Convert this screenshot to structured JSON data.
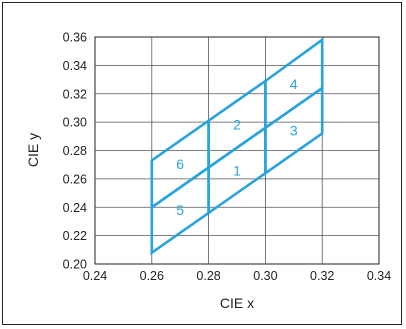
{
  "chart_data": {
    "type": "line",
    "xlabel": "CIE x",
    "ylabel": "CIE y",
    "xlim": [
      0.24,
      0.34
    ],
    "ylim": [
      0.2,
      0.36
    ],
    "x_ticks": [
      "0.24",
      "0.26",
      "0.28",
      "0.30",
      "0.32",
      "0.34"
    ],
    "y_ticks": [
      "0.20",
      "0.22",
      "0.24",
      "0.26",
      "0.28",
      "0.30",
      "0.32",
      "0.34",
      "0.36"
    ],
    "grid": true,
    "colors": {
      "bins": "#29a3dc",
      "grid": "#555555",
      "axis": "#222222"
    },
    "bins": [
      {
        "label": "1",
        "corners": [
          [
            0.28,
            0.268
          ],
          [
            0.3,
            0.296
          ],
          [
            0.3,
            0.264
          ],
          [
            0.28,
            0.236
          ]
        ]
      },
      {
        "label": "2",
        "corners": [
          [
            0.28,
            0.301
          ],
          [
            0.3,
            0.329
          ],
          [
            0.3,
            0.296
          ],
          [
            0.28,
            0.268
          ]
        ]
      },
      {
        "label": "3",
        "corners": [
          [
            0.3,
            0.296
          ],
          [
            0.32,
            0.324
          ],
          [
            0.32,
            0.292
          ],
          [
            0.3,
            0.264
          ]
        ]
      },
      {
        "label": "4",
        "corners": [
          [
            0.3,
            0.329
          ],
          [
            0.32,
            0.358
          ],
          [
            0.32,
            0.324
          ],
          [
            0.3,
            0.296
          ]
        ]
      },
      {
        "label": "5",
        "corners": [
          [
            0.26,
            0.24
          ],
          [
            0.28,
            0.268
          ],
          [
            0.28,
            0.236
          ],
          [
            0.26,
            0.208
          ]
        ]
      },
      {
        "label": "6",
        "corners": [
          [
            0.26,
            0.273
          ],
          [
            0.28,
            0.301
          ],
          [
            0.28,
            0.268
          ],
          [
            0.26,
            0.24
          ]
        ]
      }
    ]
  }
}
